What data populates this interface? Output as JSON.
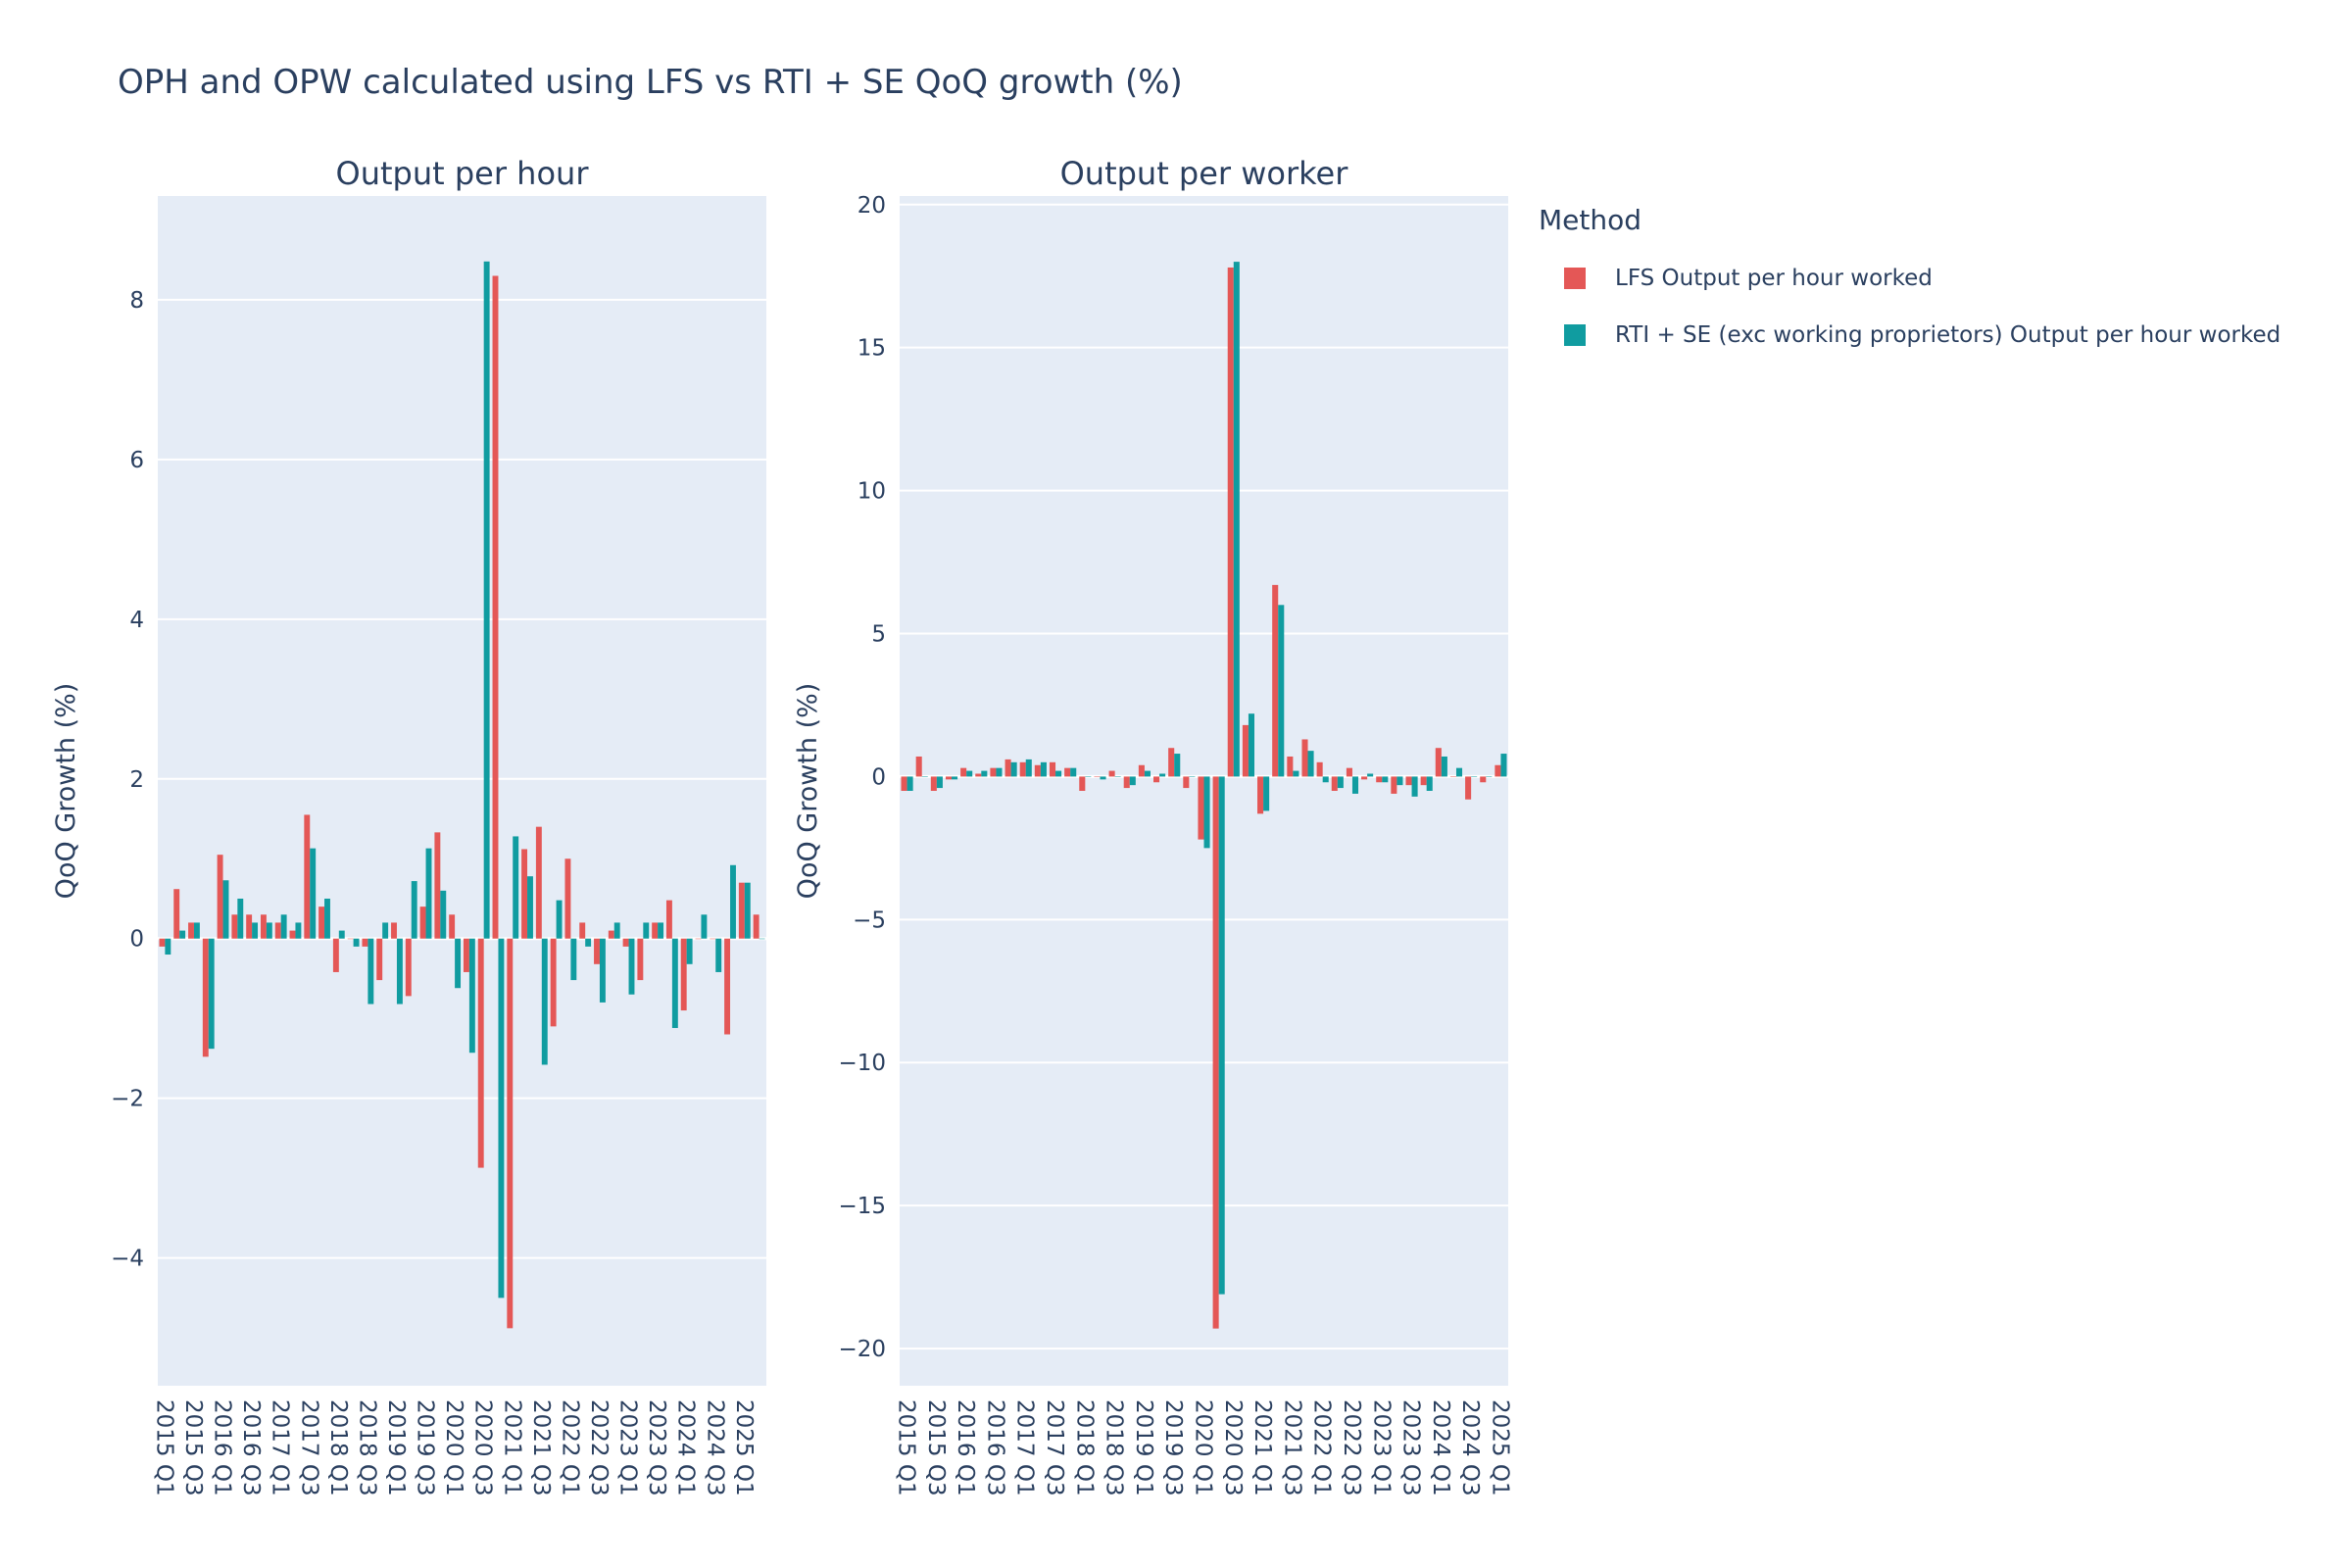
{
  "figure": {
    "title": "OPH and OPW calculated using LFS vs RTI + SE QoQ growth (%)",
    "legend_title": "Method",
    "series_names": [
      "LFS Output per hour worked",
      "RTI + SE (exc working proprietors) Output per hour worked"
    ],
    "colors": [
      "#e45756",
      "#109ca0"
    ],
    "plot_bg": "#e5ecf6",
    "grid_color": "#ffffff",
    "text_color": "#2a3f5f"
  },
  "chart_data": [
    {
      "type": "bar",
      "title": "Output per hour",
      "xlabel": "",
      "ylabel": "QoQ Growth (%)",
      "ylim": [
        -5.6,
        9.3
      ],
      "yticks": [
        -4,
        -2,
        0,
        2,
        4,
        6,
        8
      ],
      "ytick_labels": [
        "−4",
        "−2",
        "0",
        "2",
        "4",
        "6",
        "8"
      ],
      "categories": [
        "2015 Q1",
        "2015 Q2",
        "2015 Q3",
        "2015 Q4",
        "2016 Q1",
        "2016 Q2",
        "2016 Q3",
        "2016 Q4",
        "2017 Q1",
        "2017 Q2",
        "2017 Q3",
        "2017 Q4",
        "2018 Q1",
        "2018 Q2",
        "2018 Q3",
        "2018 Q4",
        "2019 Q1",
        "2019 Q2",
        "2019 Q3",
        "2019 Q4",
        "2020 Q1",
        "2020 Q2",
        "2020 Q3",
        "2020 Q4",
        "2021 Q1",
        "2021 Q2",
        "2021 Q3",
        "2021 Q4",
        "2022 Q1",
        "2022 Q2",
        "2022 Q3",
        "2022 Q4",
        "2023 Q1",
        "2023 Q2",
        "2023 Q3",
        "2023 Q4",
        "2024 Q1",
        "2024 Q2",
        "2024 Q3",
        "2024 Q4",
        "2025 Q1",
        "2025 Q2"
      ],
      "tick_labels": [
        "2015 Q1",
        "2015 Q3",
        "2016 Q1",
        "2016 Q3",
        "2017 Q1",
        "2017 Q3",
        "2018 Q1",
        "2018 Q3",
        "2019 Q1",
        "2019 Q3",
        "2020 Q1",
        "2020 Q3",
        "2021 Q1",
        "2021 Q3",
        "2022 Q1",
        "2022 Q3",
        "2023 Q1",
        "2023 Q3",
        "2024 Q1",
        "2024 Q3",
        "2025 Q1"
      ],
      "grid": true,
      "series": [
        {
          "name": "LFS Output per hour worked",
          "values": [
            -0.1,
            0.62,
            0.2,
            -1.48,
            1.05,
            0.3,
            0.3,
            0.3,
            0.2,
            0.1,
            1.55,
            0.4,
            -0.42,
            0.0,
            -0.1,
            -0.52,
            0.2,
            -0.72,
            0.4,
            1.33,
            0.3,
            -0.42,
            -2.87,
            8.3,
            -4.88,
            1.12,
            1.4,
            -1.1,
            1.0,
            0.2,
            -0.32,
            0.1,
            -0.1,
            -0.52,
            0.2,
            0.48,
            -0.9,
            0.0,
            0.0,
            -1.2,
            0.7,
            0.3
          ]
        },
        {
          "name": "RTI + SE (exc working proprietors) Output per hour worked",
          "values": [
            -0.2,
            0.1,
            0.2,
            -1.38,
            0.73,
            0.5,
            0.2,
            0.2,
            0.3,
            0.2,
            1.13,
            0.5,
            0.1,
            -0.1,
            -0.82,
            0.2,
            -0.82,
            0.72,
            1.13,
            0.6,
            -0.62,
            -1.43,
            8.48,
            -4.5,
            1.28,
            0.78,
            -1.58,
            0.48,
            -0.52,
            -0.1,
            -0.8,
            0.2,
            -0.7,
            0.2,
            0.2,
            -1.12,
            -0.32,
            0.3,
            -0.42,
            0.92,
            0.7,
            0.0
          ]
        }
      ]
    },
    {
      "type": "bar",
      "title": "Output per worker",
      "xlabel": "",
      "ylabel": "QoQ Growth (%)",
      "ylim": [
        -21.3,
        20.3
      ],
      "yticks": [
        -20,
        -15,
        -10,
        -5,
        0,
        5,
        10,
        15,
        20
      ],
      "ytick_labels": [
        "−20",
        "−15",
        "−10",
        "−5",
        "0",
        "5",
        "10",
        "15",
        "20"
      ],
      "categories": [
        "2015 Q1",
        "2015 Q2",
        "2015 Q3",
        "2015 Q4",
        "2016 Q1",
        "2016 Q2",
        "2016 Q3",
        "2016 Q4",
        "2017 Q1",
        "2017 Q2",
        "2017 Q3",
        "2017 Q4",
        "2018 Q1",
        "2018 Q2",
        "2018 Q3",
        "2018 Q4",
        "2019 Q1",
        "2019 Q2",
        "2019 Q3",
        "2019 Q4",
        "2020 Q1",
        "2020 Q2",
        "2020 Q3",
        "2020 Q4",
        "2021 Q1",
        "2021 Q2",
        "2021 Q3",
        "2021 Q4",
        "2022 Q1",
        "2022 Q2",
        "2022 Q3",
        "2022 Q4",
        "2023 Q1",
        "2023 Q2",
        "2023 Q3",
        "2023 Q4",
        "2024 Q1",
        "2024 Q2",
        "2024 Q3",
        "2024 Q4",
        "2025 Q1"
      ],
      "tick_labels": [
        "2015 Q1",
        "2015 Q3",
        "2016 Q1",
        "2016 Q3",
        "2017 Q1",
        "2017 Q3",
        "2018 Q1",
        "2018 Q3",
        "2019 Q1",
        "2019 Q3",
        "2020 Q1",
        "2020 Q3",
        "2021 Q1",
        "2021 Q3",
        "2022 Q1",
        "2022 Q3",
        "2023 Q1",
        "2023 Q3",
        "2024 Q1",
        "2024 Q3",
        "2025 Q1"
      ],
      "grid": true,
      "series": [
        {
          "name": "LFS Output per hour worked",
          "values": [
            -0.5,
            0.7,
            -0.5,
            -0.1,
            0.3,
            0.1,
            0.3,
            0.6,
            0.5,
            0.4,
            0.5,
            0.3,
            -0.5,
            0.0,
            0.2,
            -0.4,
            0.4,
            -0.2,
            1.0,
            -0.4,
            -2.2,
            -19.3,
            17.8,
            1.8,
            -1.3,
            6.7,
            0.7,
            1.3,
            0.5,
            -0.5,
            0.3,
            -0.1,
            -0.2,
            -0.6,
            -0.3,
            -0.3,
            1.0,
            0.0,
            -0.8,
            -0.2,
            0.4
          ]
        },
        {
          "name": "RTI + SE (exc working proprietors) Output per hour worked",
          "values": [
            -0.5,
            0.0,
            -0.4,
            -0.1,
            0.2,
            0.2,
            0.3,
            0.5,
            0.6,
            0.5,
            0.2,
            0.3,
            0.0,
            -0.1,
            0.0,
            -0.3,
            0.2,
            0.1,
            0.8,
            0.0,
            -2.5,
            -18.1,
            18.0,
            2.2,
            -1.2,
            6.0,
            0.2,
            0.9,
            -0.2,
            -0.4,
            -0.6,
            0.1,
            -0.2,
            -0.3,
            -0.7,
            -0.5,
            0.7,
            0.3,
            0.0,
            0.0,
            0.8
          ]
        }
      ]
    }
  ]
}
